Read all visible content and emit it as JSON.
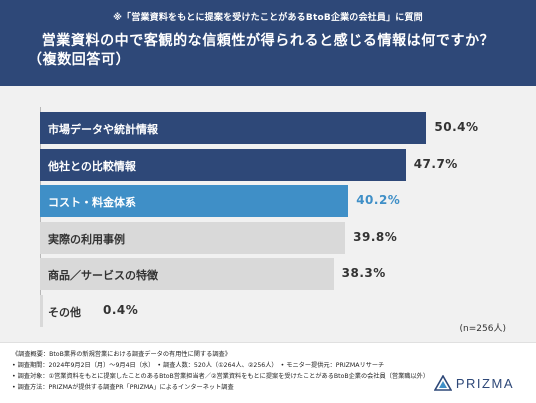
{
  "header": {
    "note": "※「営業資料をもとに提案を受けたことがあるBtoB企業の会社員」に質問",
    "question_line1": "営業資料の中で客観的な信頼性が得られると感じる情報は何ですか？",
    "question_line2": "（複数回答可）"
  },
  "chart_data": {
    "type": "bar",
    "orientation": "horizontal",
    "categories": [
      "市場データや統計情報",
      "他社との比較情報",
      "コスト・料金体系",
      "実際の利用事例",
      "商品／サービスの特徴",
      "その他"
    ],
    "values": [
      50.4,
      47.7,
      40.2,
      39.8,
      38.3,
      0.4
    ],
    "value_labels": [
      "50.4%",
      "47.7%",
      "40.2%",
      "39.8%",
      "38.3%",
      "0.4%"
    ],
    "unit": "%",
    "xlim": [
      0,
      60
    ],
    "bar_colors": [
      "#2e4878",
      "#2e4878",
      "#3f8fc7",
      "#d9d9d9",
      "#d9d9d9",
      "#d9d9d9"
    ],
    "value_colors": [
      "#333333",
      "#333333",
      "#3f8fc7",
      "#333333",
      "#333333",
      "#333333"
    ],
    "n_note": "(n=256人)",
    "grid": false
  },
  "footer": {
    "lines": [
      "《調査概要：BtoB業界の新規営業における調査データの有用性に関する調査》",
      "• 調査期間：2024年9月2日（月）〜9月4日（水）　• 調査人数：520人（①264人、②256人）　• モニター提供元：PRIZMAリサーチ",
      "• 調査対象：①営業資料をもとに提案したことのあるBtoB営業担当者／②営業資料をもとに提案を受けたことがあるBtoB企業の会社員（営業職以外）",
      "• 調査方法：PRIZMAが提供する調査PR「PRIZMA」によるインターネット調査"
    ]
  },
  "brand": {
    "name": "PRIZMA",
    "icon": "prizma-logo-icon",
    "color": "#2e4878"
  }
}
